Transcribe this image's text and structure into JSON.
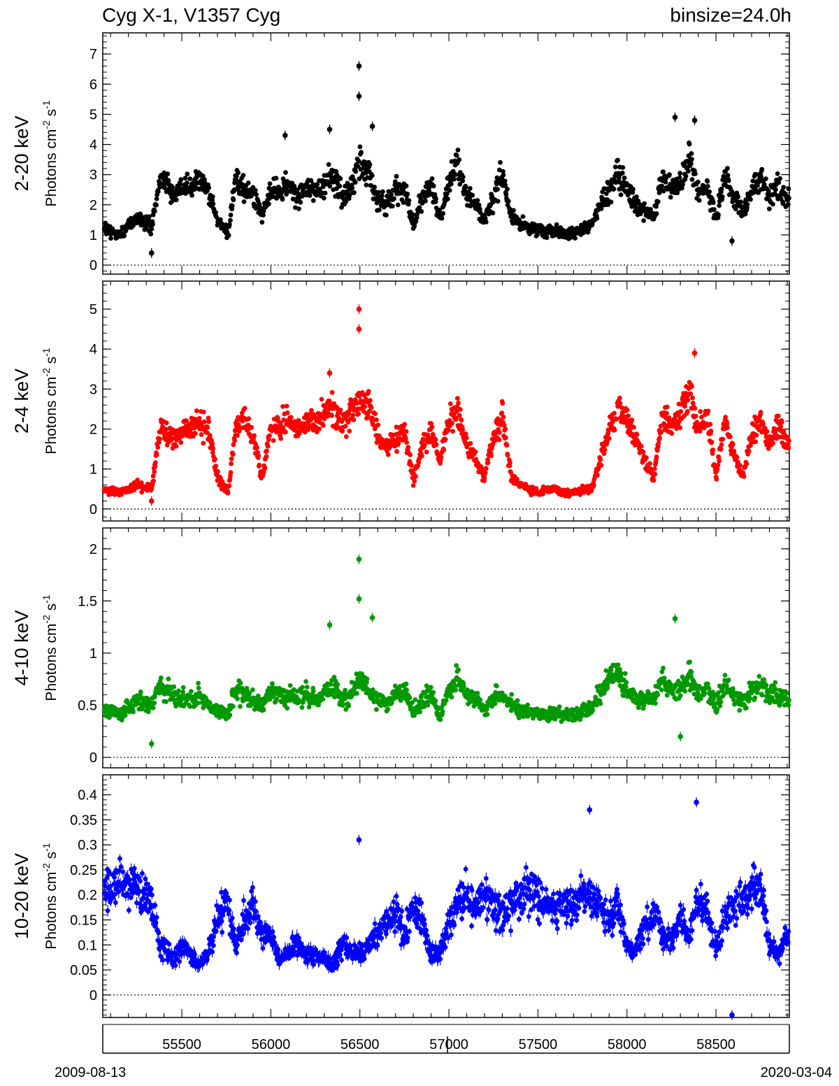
{
  "header": {
    "source": "Cyg X-1, V1357 Cyg",
    "binsize": "binsize=24.0h"
  },
  "footer": {
    "start_date": "2009-08-13",
    "end_date": "2020-03-04"
  },
  "colors": {
    "band1": "#000000",
    "band2": "#ff0000",
    "band3": "#009900",
    "band4": "#0000ff",
    "axis": "#000000"
  },
  "chart_data": [
    {
      "type": "scatter",
      "band_label": "2-20 keV",
      "ylabel": "Photons cm-2 s-1",
      "ylim": [
        -0.3,
        7.7
      ],
      "yticks": [
        0,
        1,
        2,
        3,
        4,
        5,
        6,
        7
      ],
      "ytick_labels": [
        "0",
        "1",
        "2",
        "3",
        "4",
        "5",
        "6",
        "7"
      ],
      "xlim": [
        55056,
        58912
      ],
      "color_key": "band1",
      "error_bars": true,
      "zero_line": true,
      "series": [
        {
          "name": "2-20 keV",
          "x": [
            55070,
            55150,
            55250,
            55330,
            55380,
            55450,
            55500,
            55600,
            55650,
            55700,
            55760,
            55800,
            55850,
            55900,
            55950,
            56000,
            56050,
            56100,
            56150,
            56200,
            56250,
            56300,
            56350,
            56400,
            56450,
            56500,
            56550,
            56600,
            56650,
            56700,
            56750,
            56800,
            56850,
            56900,
            56950,
            57000,
            57050,
            57100,
            57150,
            57200,
            57250,
            57300,
            57350,
            57400,
            57450,
            57500,
            57550,
            57600,
            57650,
            57700,
            57750,
            57800,
            57850,
            57900,
            57950,
            58000,
            58050,
            58100,
            58150,
            58200,
            58250,
            58300,
            58350,
            58400,
            58450,
            58500,
            58550,
            58600,
            58650,
            58700,
            58750,
            58800,
            58850,
            58900
          ],
          "y": [
            1.2,
            1.0,
            1.6,
            1.2,
            3.0,
            2.3,
            2.5,
            2.8,
            2.4,
            1.5,
            1.0,
            2.8,
            2.5,
            2.4,
            1.6,
            2.6,
            2.4,
            2.7,
            2.2,
            2.6,
            2.4,
            2.6,
            3.0,
            2.2,
            2.6,
            3.5,
            3.0,
            2.2,
            2.0,
            2.4,
            2.6,
            1.3,
            2.2,
            2.6,
            1.5,
            2.8,
            3.5,
            2.3,
            2.0,
            1.5,
            2.2,
            3.0,
            1.6,
            1.4,
            1.2,
            1.2,
            1.1,
            1.2,
            1.0,
            1.1,
            1.2,
            1.3,
            2.0,
            2.5,
            3.0,
            2.4,
            2.0,
            1.8,
            1.6,
            3.0,
            2.5,
            2.8,
            3.5,
            2.4,
            2.6,
            1.5,
            3.0,
            2.2,
            1.8,
            2.5,
            2.8,
            2.2,
            2.6,
            2.2
          ]
        }
      ],
      "outliers": [
        {
          "x": 56495,
          "y": 6.6
        },
        {
          "x": 56495,
          "y": 5.6
        },
        {
          "x": 56570,
          "y": 4.6
        },
        {
          "x": 56330,
          "y": 4.5
        },
        {
          "x": 58270,
          "y": 4.9
        },
        {
          "x": 58380,
          "y": 4.8
        },
        {
          "x": 55330,
          "y": 0.4
        },
        {
          "x": 58590,
          "y": 0.8
        },
        {
          "x": 56080,
          "y": 4.3
        }
      ]
    },
    {
      "type": "scatter",
      "band_label": "2-4 keV",
      "ylabel": "Photons cm-2 s-1",
      "ylim": [
        -0.3,
        5.7
      ],
      "yticks": [
        0,
        1,
        2,
        3,
        4,
        5
      ],
      "ytick_labels": [
        "0",
        "1",
        "2",
        "3",
        "4",
        "5"
      ],
      "xlim": [
        55056,
        58912
      ],
      "color_key": "band2",
      "error_bars": true,
      "zero_line": true,
      "series": [
        {
          "name": "2-4 keV",
          "x": [
            55070,
            55150,
            55250,
            55330,
            55380,
            55450,
            55500,
            55600,
            55650,
            55700,
            55760,
            55800,
            55850,
            55900,
            55950,
            56000,
            56050,
            56100,
            56150,
            56200,
            56250,
            56300,
            56350,
            56400,
            56450,
            56500,
            56550,
            56600,
            56650,
            56700,
            56750,
            56800,
            56850,
            56900,
            56950,
            57000,
            57050,
            57100,
            57150,
            57200,
            57250,
            57300,
            57350,
            57400,
            57450,
            57500,
            57550,
            57600,
            57650,
            57700,
            57750,
            57800,
            57850,
            57900,
            57950,
            58000,
            58050,
            58100,
            58150,
            58200,
            58250,
            58300,
            58350,
            58400,
            58450,
            58500,
            58550,
            58600,
            58650,
            58700,
            58750,
            58800,
            58850,
            58900
          ],
          "y": [
            0.5,
            0.4,
            0.6,
            0.5,
            2.0,
            1.8,
            1.9,
            2.2,
            2.0,
            0.8,
            0.4,
            2.0,
            2.2,
            1.8,
            0.8,
            2.0,
            2.0,
            2.2,
            2.0,
            2.2,
            2.2,
            2.4,
            2.6,
            2.2,
            2.4,
            2.8,
            2.6,
            1.8,
            1.5,
            1.8,
            2.0,
            0.7,
            1.6,
            2.0,
            1.2,
            2.2,
            2.4,
            1.6,
            1.2,
            0.8,
            1.8,
            2.4,
            0.8,
            0.6,
            0.5,
            0.4,
            0.5,
            0.5,
            0.4,
            0.4,
            0.5,
            0.5,
            1.2,
            2.0,
            2.6,
            2.2,
            1.8,
            1.2,
            0.8,
            2.4,
            2.0,
            2.4,
            3.0,
            2.0,
            2.4,
            0.8,
            2.2,
            1.4,
            0.8,
            1.8,
            2.2,
            1.6,
            2.2,
            1.6
          ]
        }
      ],
      "outliers": [
        {
          "x": 56495,
          "y": 5.0
        },
        {
          "x": 56495,
          "y": 4.5
        },
        {
          "x": 58380,
          "y": 3.9
        },
        {
          "x": 56330,
          "y": 3.4
        },
        {
          "x": 55330,
          "y": 0.2
        }
      ]
    },
    {
      "type": "scatter",
      "band_label": "4-10 keV",
      "ylabel": "Photons cm-2 s-1",
      "ylim": [
        -0.1,
        2.2
      ],
      "yticks": [
        0,
        0.5,
        1,
        1.5,
        2
      ],
      "ytick_labels": [
        "0",
        "0.5",
        "1",
        "1.5",
        "2"
      ],
      "xlim": [
        55056,
        58912
      ],
      "color_key": "band3",
      "error_bars": true,
      "zero_line": true,
      "series": [
        {
          "name": "4-10 keV",
          "x": [
            55070,
            55150,
            55250,
            55330,
            55380,
            55450,
            55500,
            55600,
            55650,
            55700,
            55760,
            55800,
            55850,
            55900,
            55950,
            56000,
            56050,
            56100,
            56150,
            56200,
            56250,
            56300,
            56350,
            56400,
            56450,
            56500,
            56550,
            56600,
            56650,
            56700,
            56750,
            56800,
            56850,
            56900,
            56950,
            57000,
            57050,
            57100,
            57150,
            57200,
            57250,
            57300,
            57350,
            57400,
            57450,
            57500,
            57550,
            57600,
            57650,
            57700,
            57750,
            57800,
            57850,
            57900,
            57950,
            58000,
            58050,
            58100,
            58150,
            58200,
            58250,
            58300,
            58350,
            58400,
            58450,
            58500,
            58550,
            58600,
            58650,
            58700,
            58750,
            58800,
            58850,
            58900
          ],
          "y": [
            0.45,
            0.42,
            0.55,
            0.5,
            0.7,
            0.6,
            0.55,
            0.6,
            0.5,
            0.45,
            0.4,
            0.65,
            0.6,
            0.55,
            0.5,
            0.65,
            0.6,
            0.6,
            0.55,
            0.6,
            0.55,
            0.62,
            0.68,
            0.55,
            0.6,
            0.75,
            0.65,
            0.55,
            0.5,
            0.6,
            0.65,
            0.45,
            0.55,
            0.6,
            0.4,
            0.65,
            0.75,
            0.6,
            0.55,
            0.45,
            0.55,
            0.6,
            0.5,
            0.45,
            0.42,
            0.42,
            0.4,
            0.42,
            0.4,
            0.42,
            0.45,
            0.48,
            0.6,
            0.8,
            0.8,
            0.65,
            0.55,
            0.55,
            0.55,
            0.75,
            0.65,
            0.65,
            0.8,
            0.6,
            0.65,
            0.5,
            0.7,
            0.6,
            0.55,
            0.65,
            0.7,
            0.6,
            0.6,
            0.55
          ]
        }
      ],
      "outliers": [
        {
          "x": 56495,
          "y": 1.9
        },
        {
          "x": 56495,
          "y": 1.52
        },
        {
          "x": 56570,
          "y": 1.34
        },
        {
          "x": 56330,
          "y": 1.27
        },
        {
          "x": 58270,
          "y": 1.33
        },
        {
          "x": 55330,
          "y": 0.13
        },
        {
          "x": 58300,
          "y": 0.2
        }
      ]
    },
    {
      "type": "scatter",
      "band_label": "10-20 keV",
      "ylabel": "Photons cm-2 s-1",
      "ylim": [
        -0.045,
        0.44
      ],
      "yticks": [
        0,
        0.05,
        0.1,
        0.15,
        0.2,
        0.25,
        0.3,
        0.35,
        0.4
      ],
      "ytick_labels": [
        "0",
        "0.05",
        "0.1",
        "0.15",
        "0.2",
        "0.25",
        "0.3",
        "0.35",
        "0.4"
      ],
      "xlim": [
        55056,
        58912
      ],
      "xticks": [
        55500,
        56000,
        56500,
        57000,
        57500,
        58000,
        58500
      ],
      "xtick_labels": [
        "55500",
        "56000",
        "56500",
        "57000",
        "57500",
        "58000",
        "58500"
      ],
      "color_key": "band4",
      "error_bars": true,
      "zero_line": true,
      "series": [
        {
          "name": "10-20 keV",
          "x": [
            55070,
            55150,
            55250,
            55330,
            55380,
            55450,
            55500,
            55600,
            55650,
            55700,
            55760,
            55800,
            55850,
            55900,
            55950,
            56000,
            56050,
            56100,
            56150,
            56200,
            56250,
            56300,
            56350,
            56400,
            56450,
            56500,
            56550,
            56600,
            56650,
            56700,
            56750,
            56800,
            56850,
            56900,
            56950,
            57000,
            57050,
            57100,
            57150,
            57200,
            57250,
            57300,
            57350,
            57400,
            57450,
            57500,
            57550,
            57600,
            57650,
            57700,
            57750,
            57800,
            57850,
            57900,
            57950,
            58000,
            58050,
            58100,
            58150,
            58200,
            58250,
            58300,
            58350,
            58400,
            58450,
            58500,
            58550,
            58600,
            58650,
            58700,
            58750,
            58800,
            58850,
            58900
          ],
          "y": [
            0.2,
            0.22,
            0.21,
            0.18,
            0.1,
            0.07,
            0.1,
            0.06,
            0.09,
            0.15,
            0.19,
            0.1,
            0.15,
            0.18,
            0.12,
            0.12,
            0.07,
            0.09,
            0.1,
            0.08,
            0.08,
            0.07,
            0.06,
            0.1,
            0.09,
            0.08,
            0.1,
            0.12,
            0.15,
            0.17,
            0.12,
            0.18,
            0.15,
            0.08,
            0.08,
            0.14,
            0.18,
            0.2,
            0.17,
            0.19,
            0.18,
            0.16,
            0.19,
            0.2,
            0.21,
            0.19,
            0.18,
            0.17,
            0.19,
            0.18,
            0.2,
            0.19,
            0.18,
            0.16,
            0.18,
            0.1,
            0.09,
            0.14,
            0.17,
            0.12,
            0.11,
            0.15,
            0.12,
            0.19,
            0.17,
            0.09,
            0.16,
            0.17,
            0.2,
            0.21,
            0.22,
            0.1,
            0.08,
            0.12
          ]
        }
      ],
      "outliers": [
        {
          "x": 57790,
          "y": 0.37
        },
        {
          "x": 58390,
          "y": 0.385
        },
        {
          "x": 56495,
          "y": 0.31
        },
        {
          "x": 58590,
          "y": -0.04
        }
      ]
    }
  ]
}
